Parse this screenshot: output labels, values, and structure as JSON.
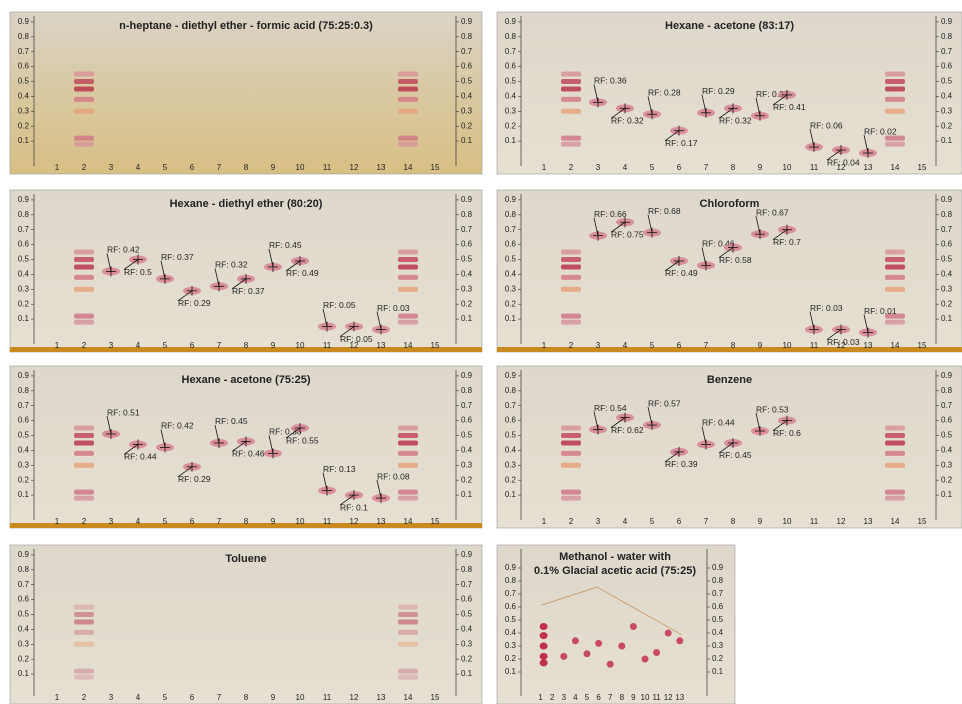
{
  "rf_ticks": [
    0.1,
    0.2,
    0.3,
    0.4,
    0.5,
    0.6,
    0.7,
    0.8,
    0.9
  ],
  "lanes": [
    1,
    2,
    3,
    4,
    5,
    6,
    7,
    8,
    9,
    10,
    11,
    12,
    13,
    14,
    15
  ],
  "small_lanes": [
    1,
    2,
    3,
    4,
    5,
    6,
    7,
    8,
    9,
    10,
    11,
    12,
    13
  ],
  "panels": [
    {
      "title": "n-heptane - diethyl ether - formic acid (75:25:0.3)",
      "spots": []
    },
    {
      "title": "Hexane - acetone (83:17)",
      "spots": [
        {
          "lane": 3,
          "rf": 0.36,
          "label": "RF: 0.36"
        },
        {
          "lane": 4,
          "rf": 0.32,
          "label": "RF: 0.32"
        },
        {
          "lane": 5,
          "rf": 0.28,
          "label": "RF: 0.28"
        },
        {
          "lane": 6,
          "rf": 0.17,
          "label": "RF: 0.17"
        },
        {
          "lane": 7,
          "rf": 0.29,
          "label": "RF: 0.29"
        },
        {
          "lane": 8,
          "rf": 0.32,
          "label": "RF: 0.32"
        },
        {
          "lane": 9,
          "rf": 0.27,
          "label": "RF: 0.27"
        },
        {
          "lane": 10,
          "rf": 0.41,
          "label": "RF: 0.41"
        },
        {
          "lane": 11,
          "rf": 0.06,
          "label": "RF: 0.06"
        },
        {
          "lane": 12,
          "rf": 0.04,
          "label": "RF: 0.04"
        },
        {
          "lane": 13,
          "rf": 0.02,
          "label": "RF: 0.02"
        }
      ]
    },
    {
      "title": "Hexane - diethyl ether (80:20)",
      "spots": [
        {
          "lane": 3,
          "rf": 0.42,
          "label": "RF: 0.42"
        },
        {
          "lane": 4,
          "rf": 0.5,
          "label": "RF: 0.5"
        },
        {
          "lane": 5,
          "rf": 0.37,
          "label": "RF: 0.37"
        },
        {
          "lane": 6,
          "rf": 0.29,
          "label": "RF: 0.29"
        },
        {
          "lane": 7,
          "rf": 0.32,
          "label": "RF: 0.32"
        },
        {
          "lane": 8,
          "rf": 0.37,
          "label": "RF: 0.37"
        },
        {
          "lane": 9,
          "rf": 0.45,
          "label": "RF: 0.45"
        },
        {
          "lane": 10,
          "rf": 0.49,
          "label": "RF: 0.49"
        },
        {
          "lane": 11,
          "rf": 0.05,
          "label": "RF: 0.05"
        },
        {
          "lane": 12,
          "rf": 0.05,
          "label": "RF: 0.05"
        },
        {
          "lane": 13,
          "rf": 0.03,
          "label": "RF: 0.03"
        }
      ]
    },
    {
      "title": "Chloroform",
      "spots": [
        {
          "lane": 3,
          "rf": 0.66,
          "label": "RF: 0.66"
        },
        {
          "lane": 4,
          "rf": 0.75,
          "label": "RF: 0.75"
        },
        {
          "lane": 5,
          "rf": 0.68,
          "label": "RF: 0.68"
        },
        {
          "lane": 6,
          "rf": 0.49,
          "label": "RF: 0.49"
        },
        {
          "lane": 7,
          "rf": 0.46,
          "label": "RF: 0.46"
        },
        {
          "lane": 8,
          "rf": 0.58,
          "label": "RF: 0.58"
        },
        {
          "lane": 9,
          "rf": 0.67,
          "label": "RF: 0.67"
        },
        {
          "lane": 10,
          "rf": 0.7,
          "label": "RF: 0.7"
        },
        {
          "lane": 11,
          "rf": 0.03,
          "label": "RF: 0.03"
        },
        {
          "lane": 12,
          "rf": 0.03,
          "label": "RF: 0.03"
        },
        {
          "lane": 13,
          "rf": 0.01,
          "label": "RF: 0.01"
        }
      ]
    },
    {
      "title": "Hexane - acetone (75:25)",
      "spots": [
        {
          "lane": 3,
          "rf": 0.51,
          "label": "RF: 0.51"
        },
        {
          "lane": 4,
          "rf": 0.44,
          "label": "RF: 0.44"
        },
        {
          "lane": 5,
          "rf": 0.42,
          "label": "RF: 0.42"
        },
        {
          "lane": 6,
          "rf": 0.29,
          "label": "RF: 0.29"
        },
        {
          "lane": 7,
          "rf": 0.45,
          "label": "RF: 0.45"
        },
        {
          "lane": 8,
          "rf": 0.46,
          "label": "RF: 0.46"
        },
        {
          "lane": 9,
          "rf": 0.38,
          "label": "RF: 0.38"
        },
        {
          "lane": 10,
          "rf": 0.55,
          "label": "RF: 0.55"
        },
        {
          "lane": 11,
          "rf": 0.13,
          "label": "RF: 0.13"
        },
        {
          "lane": 12,
          "rf": 0.1,
          "label": "RF: 0.1"
        },
        {
          "lane": 13,
          "rf": 0.08,
          "label": "RF: 0.08"
        }
      ]
    },
    {
      "title": "Benzene",
      "spots": [
        {
          "lane": 3,
          "rf": 0.54,
          "label": "RF: 0.54"
        },
        {
          "lane": 4,
          "rf": 0.62,
          "label": "RF: 0.62"
        },
        {
          "lane": 5,
          "rf": 0.57,
          "label": "RF: 0.57"
        },
        {
          "lane": 6,
          "rf": 0.39,
          "label": "RF: 0.39"
        },
        {
          "lane": 7,
          "rf": 0.44,
          "label": "RF: 0.44"
        },
        {
          "lane": 8,
          "rf": 0.45,
          "label": "RF: 0.45"
        },
        {
          "lane": 9,
          "rf": 0.53,
          "label": "RF: 0.53"
        },
        {
          "lane": 10,
          "rf": 0.6,
          "label": "RF: 0.6"
        }
      ]
    },
    {
      "title": "Toluene",
      "spots": []
    },
    {
      "title": [
        "Methanol - water with",
        "0.1% Glacial acetic acid (75:25)"
      ],
      "spots": []
    }
  ]
}
